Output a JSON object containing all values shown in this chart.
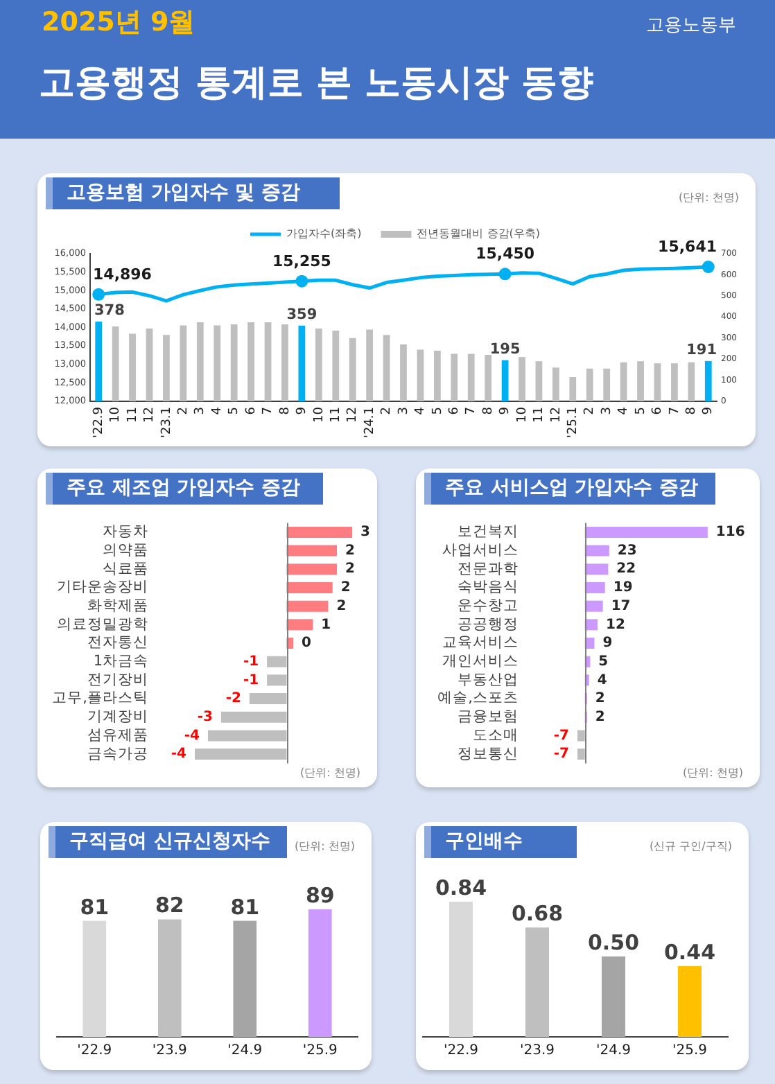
{
  "chart_data": [
    {
      "type": "other",
      "title": "고용행정 통계로 본 노동시장 동향",
      "subtitle": "2025년 9월",
      "annotations": [
        "고용노동부"
      ]
    },
    {
      "type": "line",
      "title": "고용보험 가입자수 및 증감",
      "annotations": [
        "(단위: 천명)"
      ],
      "legend": "top",
      "categories": [
        "'22.9",
        "10",
        "11",
        "12",
        "'23.1",
        "2",
        "3",
        "4",
        "5",
        "6",
        "7",
        "8",
        "9",
        "10",
        "11",
        "12",
        "'24.1",
        "2",
        "3",
        "4",
        "5",
        "6",
        "7",
        "8",
        "9",
        "10",
        "11",
        "12",
        "'25.1",
        "2",
        "3",
        "4",
        "5",
        "6",
        "7",
        "8",
        "9"
      ],
      "series": [
        {
          "name": "가입자수(좌축)",
          "type": "line",
          "color": "#00b0f0",
          "values": [
            14896,
            14950,
            14960,
            14860,
            14720,
            14890,
            15000,
            15100,
            15150,
            15180,
            15200,
            15230,
            15255,
            15280,
            15280,
            15160,
            15070,
            15220,
            15280,
            15350,
            15390,
            15410,
            15430,
            15440,
            15450,
            15480,
            15470,
            15330,
            15180,
            15380,
            15450,
            15550,
            15580,
            15590,
            15600,
            15620,
            15641
          ]
        },
        {
          "type": "scatter",
          "marker": "circle",
          "color": "#00b0f0",
          "values": [
            14896,
            null,
            null,
            null,
            null,
            null,
            null,
            null,
            null,
            null,
            null,
            null,
            15255,
            null,
            null,
            null,
            null,
            null,
            null,
            null,
            null,
            null,
            null,
            null,
            15450,
            null,
            null,
            null,
            null,
            null,
            null,
            null,
            null,
            null,
            null,
            null,
            15641
          ],
          "value_labels": [
            "14,896",
            null,
            null,
            null,
            null,
            null,
            null,
            null,
            null,
            null,
            null,
            null,
            "15,255",
            null,
            null,
            null,
            null,
            null,
            null,
            null,
            null,
            null,
            null,
            null,
            "15,450",
            null,
            null,
            null,
            null,
            null,
            null,
            null,
            null,
            null,
            null,
            null,
            "15,641"
          ]
        },
        {
          "name": "전년동월대비 증감(우축)",
          "type": "bar",
          "axis": "y2",
          "color": "#bfbfbf",
          "colors": [
            "#00b0f0",
            "#bfbfbf",
            "#bfbfbf",
            "#bfbfbf",
            "#bfbfbf",
            "#bfbfbf",
            "#bfbfbf",
            "#bfbfbf",
            "#bfbfbf",
            "#bfbfbf",
            "#bfbfbf",
            "#bfbfbf",
            "#00b0f0",
            "#bfbfbf",
            "#bfbfbf",
            "#bfbfbf",
            "#bfbfbf",
            "#bfbfbf",
            "#bfbfbf",
            "#bfbfbf",
            "#bfbfbf",
            "#bfbfbf",
            "#bfbfbf",
            "#bfbfbf",
            "#00b0f0",
            "#bfbfbf",
            "#bfbfbf",
            "#bfbfbf",
            "#bfbfbf",
            "#bfbfbf",
            "#bfbfbf",
            "#bfbfbf",
            "#bfbfbf",
            "#bfbfbf",
            "#bfbfbf",
            "#bfbfbf",
            "#00b0f0"
          ],
          "values": [
            378,
            355,
            320,
            345,
            315,
            360,
            375,
            360,
            365,
            375,
            375,
            365,
            359,
            345,
            335,
            300,
            340,
            315,
            270,
            245,
            240,
            225,
            225,
            220,
            195,
            210,
            190,
            160,
            115,
            155,
            155,
            185,
            190,
            180,
            180,
            185,
            191
          ],
          "value_labels": [
            "378",
            null,
            null,
            null,
            null,
            null,
            null,
            null,
            null,
            null,
            null,
            null,
            "359",
            null,
            null,
            null,
            null,
            null,
            null,
            null,
            null,
            null,
            null,
            null,
            "195",
            null,
            null,
            null,
            null,
            null,
            null,
            null,
            null,
            null,
            null,
            null,
            "191"
          ]
        }
      ],
      "ylim": [
        12000,
        16000
      ],
      "yticks": [
        {
          "value": 12000,
          "label": "12,000"
        },
        {
          "value": 12500,
          "label": "12,500"
        },
        {
          "value": 13000,
          "label": "13,000"
        },
        {
          "value": 13500,
          "label": "13,500"
        },
        {
          "value": 14000,
          "label": "14,000"
        },
        {
          "value": 14500,
          "label": "14,500"
        },
        {
          "value": 15000,
          "label": "15,000"
        },
        {
          "value": 15500,
          "label": "15,500"
        },
        {
          "value": 16000,
          "label": "16,000"
        }
      ],
      "y2lim": [
        0,
        700
      ],
      "y2ticks": [
        0,
        100,
        200,
        300,
        400,
        500,
        600,
        700
      ]
    },
    {
      "type": "bar",
      "orientation": "horizontal",
      "title": "주요 제조업 가입자수 증감",
      "annotations": [
        "(단위: 천명)"
      ],
      "tick_labels": "y",
      "categories": [
        "자동차",
        "의약품",
        "식료품",
        "기타운송장비",
        "화학제품",
        "의료정밀광학",
        "전자통신",
        "1차금속",
        "전기장비",
        "고무,플라스틱",
        "기계장비",
        "섬유제품",
        "금속가공"
      ],
      "values": [
        3,
        2.3,
        2.3,
        2.1,
        1.9,
        1.2,
        0.3,
        -0.9,
        -0.9,
        -1.7,
        -3,
        -3.6,
        -4.2
      ],
      "colors": [
        "#ff7c80",
        "#ff7c80",
        "#ff7c80",
        "#ff7c80",
        "#ff7c80",
        "#ff7c80",
        "#ff7c80",
        "#bfbfbf",
        "#bfbfbf",
        "#bfbfbf",
        "#bfbfbf",
        "#bfbfbf",
        "#bfbfbf"
      ],
      "value_labels": [
        "3",
        "2",
        "2",
        "2",
        "2",
        "1",
        "0",
        "-1",
        "-1",
        "-2",
        "-3",
        "-4",
        "-4"
      ]
    },
    {
      "type": "bar",
      "orientation": "horizontal",
      "title": "주요 서비스업 가입자수 증감",
      "annotations": [
        "(단위: 천명)"
      ],
      "tick_labels": "y",
      "categories": [
        "보건복지",
        "사업서비스",
        "전문과학",
        "숙박음식",
        "운수창고",
        "공공행정",
        "교육서비스",
        "개인서비스",
        "부동산업",
        "예술,스포츠",
        "금융보험",
        "도소매",
        "정보통신"
      ],
      "values": [
        116,
        23,
        22,
        19,
        17,
        12,
        9,
        5,
        4,
        2,
        2,
        -7,
        -7
      ],
      "colors": [
        "#cc99ff",
        "#cc99ff",
        "#cc99ff",
        "#cc99ff",
        "#cc99ff",
        "#cc99ff",
        "#cc99ff",
        "#cc99ff",
        "#cc99ff",
        "#cc99ff",
        "#cc99ff",
        "#bfbfbf",
        "#bfbfbf"
      ],
      "data_labels": true
    },
    {
      "type": "bar",
      "title": "구직급여 신규신청자수",
      "annotations": [
        "(단위: 천명)"
      ],
      "tick_labels": "x",
      "categories": [
        "'22.9",
        "'23.9",
        "'24.9",
        "'25.9"
      ],
      "values": [
        81,
        82,
        81,
        89
      ],
      "colors": [
        "#d9d9d9",
        "#bfbfbf",
        "#a5a5a5",
        "#cc99ff"
      ],
      "data_labels": true
    },
    {
      "type": "bar",
      "title": "구인배수",
      "annotations": [
        "(신규 구인/구직)"
      ],
      "tick_labels": "x",
      "categories": [
        "'22.9",
        "'23.9",
        "'24.9",
        "'25.9"
      ],
      "values": [
        0.84,
        0.68,
        0.5,
        0.44
      ],
      "colors": [
        "#d9d9d9",
        "#bfbfbf",
        "#a5a5a5",
        "#ffc000"
      ],
      "value_labels": [
        "0.84",
        "0.68",
        "0.50",
        "0.44"
      ]
    }
  ]
}
